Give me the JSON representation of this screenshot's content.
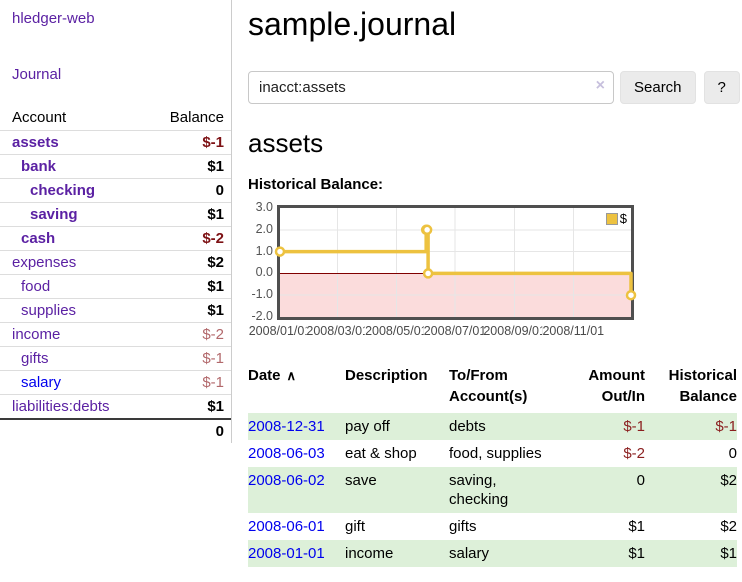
{
  "sidebar": {
    "app_title": "hledger-web",
    "nav": {
      "journal": "Journal"
    },
    "accounts_table": {
      "headers": {
        "account": "Account",
        "balance": "Balance"
      },
      "rows": [
        {
          "name": "assets",
          "indent": 1,
          "bold": true,
          "balance": "$-1",
          "negative": true
        },
        {
          "name": "bank",
          "indent": 2,
          "bold": true,
          "balance": "$1",
          "negative": false
        },
        {
          "name": "checking",
          "indent": 3,
          "bold": true,
          "balance": "0",
          "negative": false
        },
        {
          "name": "saving",
          "indent": 3,
          "bold": true,
          "balance": "$1",
          "negative": false
        },
        {
          "name": "cash",
          "indent": 2,
          "bold": true,
          "balance": "$-2",
          "negative": true
        },
        {
          "name": "expenses",
          "indent": 1,
          "bold": false,
          "balance": "$2",
          "negative": false
        },
        {
          "name": "food",
          "indent": 2,
          "bold": false,
          "balance": "$1",
          "negative": false
        },
        {
          "name": "supplies",
          "indent": 2,
          "bold": false,
          "balance": "$1",
          "negative": false
        },
        {
          "name": "income",
          "indent": 1,
          "bold": false,
          "balance": "$-2",
          "negative": true
        },
        {
          "name": "gifts",
          "indent": 2,
          "bold": false,
          "balance": "$-1",
          "negative": true
        },
        {
          "name": "salary",
          "indent": 2,
          "bold": false,
          "balance": "$-1",
          "negative": true,
          "link_blue": true
        },
        {
          "name": "liabilities:debts",
          "indent": 1,
          "bold": false,
          "balance": "$1",
          "negative": false
        }
      ],
      "total": "0"
    }
  },
  "main": {
    "title": "sample.journal",
    "search": {
      "value": "inacct:assets",
      "clear_icon": "×",
      "button": "Search",
      "help_button": "?"
    },
    "account_heading": "assets",
    "chart_label": "Historical Balance:",
    "transactions": {
      "headers": {
        "date": "Date",
        "sort_icon": "∧",
        "description": "Description",
        "accounts": "To/From\nAccount(s)",
        "amount": "Amount\nOut/In",
        "balance": "Historical\nBalance"
      },
      "rows": [
        {
          "date": "2008-12-31",
          "description": "pay off",
          "accounts": "debts",
          "amount": "$-1",
          "amount_negative": true,
          "balance": "$-1",
          "balance_negative": true
        },
        {
          "date": "2008-06-03",
          "description": "eat & shop",
          "accounts": "food, supplies",
          "amount": "$-2",
          "amount_negative": true,
          "balance": "0",
          "balance_negative": false
        },
        {
          "date": "2008-06-02",
          "description": "save",
          "accounts": "saving,\nchecking",
          "amount": "0",
          "amount_negative": false,
          "balance": "$2",
          "balance_negative": false
        },
        {
          "date": "2008-06-01",
          "description": "gift",
          "accounts": "gifts",
          "amount": "$1",
          "amount_negative": false,
          "balance": "$2",
          "balance_negative": false
        },
        {
          "date": "2008-01-01",
          "description": "income",
          "accounts": "salary",
          "amount": "$1",
          "amount_negative": false,
          "balance": "$1",
          "balance_negative": false
        }
      ]
    }
  },
  "chart_data": {
    "type": "line",
    "title": "Historical Balance:",
    "step": true,
    "series": [
      {
        "name": "$",
        "color": "#edc240",
        "points": [
          {
            "date": "2008-01-01",
            "x": 0,
            "y": 1
          },
          {
            "date": "2008-06-01",
            "x": 152,
            "y": 2
          },
          {
            "date": "2008-06-02",
            "x": 153,
            "y": 2
          },
          {
            "date": "2008-06-03",
            "x": 154,
            "y": 0
          },
          {
            "date": "2008-12-31",
            "x": 365,
            "y": -1
          }
        ]
      }
    ],
    "x_axis": {
      "min": 0,
      "max": 365,
      "ticks": [
        {
          "x": 0,
          "label": "2008/01/01"
        },
        {
          "x": 60,
          "label": "2008/03/01"
        },
        {
          "x": 121,
          "label": "2008/05/01"
        },
        {
          "x": 182,
          "label": "2008/07/01"
        },
        {
          "x": 244,
          "label": "2008/09/01"
        },
        {
          "x": 305,
          "label": "2008/11/01"
        }
      ]
    },
    "y_axis": {
      "min": -2,
      "max": 3,
      "ticks": [
        {
          "y": 3,
          "label": "3.0"
        },
        {
          "y": 2,
          "label": "2.0"
        },
        {
          "y": 1,
          "label": "1.0"
        },
        {
          "y": 0,
          "label": "0.0"
        },
        {
          "y": -1,
          "label": "-1.0"
        },
        {
          "y": -2,
          "label": "-2.0"
        }
      ]
    },
    "grid": true,
    "zero_line_color": "#800000",
    "negative_region_color": "#fbdcdc",
    "gridline_color": "#e6e6e6",
    "legend": {
      "position": "top-right",
      "entries": [
        {
          "label": "$",
          "color": "#edc240"
        }
      ]
    }
  },
  "colors": {
    "link_purple": "#5b21a3",
    "link_blue": "#0000ee",
    "negative_strong": "#7d1114",
    "negative_light": "#b2686b",
    "table_negative": "#8b1f1f",
    "table_row_green": "#ddf0d9",
    "chart_series_gold": "#edc240"
  }
}
